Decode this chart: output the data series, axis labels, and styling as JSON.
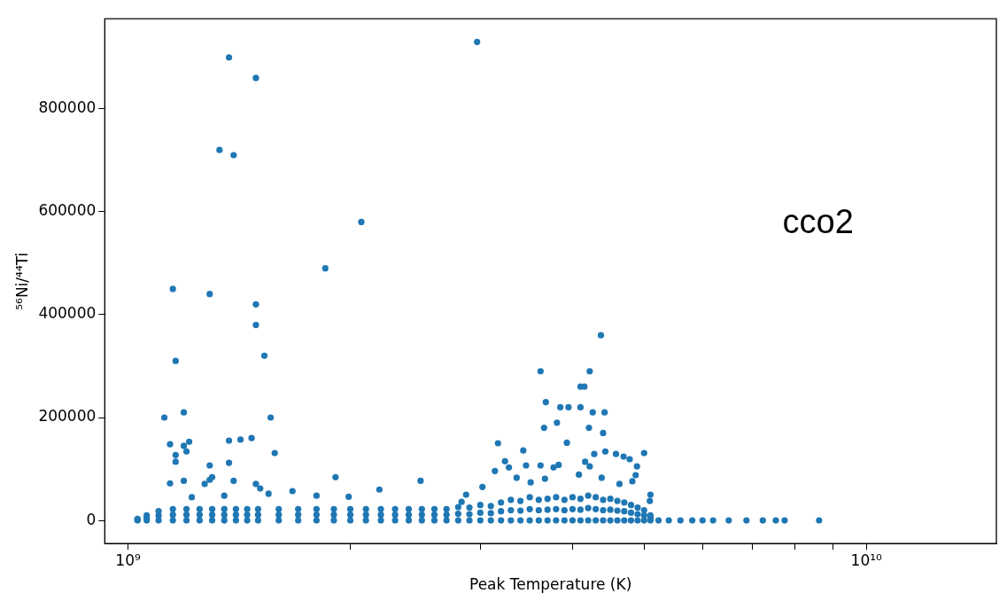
{
  "chart_data": {
    "type": "scatter",
    "xlabel": "Peak Temperature (K)",
    "ylabel": "⁵⁶Ni/⁴⁴Ti",
    "annotations": [
      "cco2"
    ],
    "log": "x",
    "grid": false,
    "marker": "circle",
    "xlim": [
      930000000.0,
      15000000000.0
    ],
    "ylim": [
      -45000,
      975000
    ],
    "xticks": [
      {
        "value": 1000000000.0,
        "label": "10⁹"
      },
      {
        "value": 2000000000.0,
        "label": null
      },
      {
        "value": 3000000000.0,
        "label": null
      },
      {
        "value": 4000000000.0,
        "label": null
      },
      {
        "value": 5000000000.0,
        "label": null
      },
      {
        "value": 6000000000.0,
        "label": null
      },
      {
        "value": 7000000000.0,
        "label": null
      },
      {
        "value": 8000000000.0,
        "label": null
      },
      {
        "value": 9000000000.0,
        "label": null
      },
      {
        "value": 10000000000.0,
        "label": "10¹⁰"
      }
    ],
    "yticks": [
      0,
      200000,
      400000,
      600000,
      800000
    ],
    "series": [
      {
        "color": "#1f77b4",
        "x": [
          1370000000.0,
          1490000000.0,
          1330000000.0,
          1390000000.0,
          2970000000.0,
          2070000000.0,
          1850000000.0,
          1150000000.0,
          1290000000.0,
          1490000000.0,
          1490000000.0,
          1530000000.0,
          1160000000.0,
          4370000000.0,
          4220000000.0,
          3620000000.0,
          4100000000.0,
          4150000000.0,
          3680000000.0,
          3850000000.0,
          3950000000.0,
          4100000000.0,
          4260000000.0,
          4420000000.0,
          3810000000.0,
          3660000000.0,
          4210000000.0,
          4400000000.0,
          1120000000.0,
          1190000000.0,
          1560000000.0,
          1370000000.0,
          1420000000.0,
          1470000000.0,
          1580000000.0,
          1910000000.0,
          2490000000.0,
          3170000000.0,
          3930000000.0,
          5000000000.0,
          1140000000.0,
          1190000000.0,
          1160000000.0,
          1160000000.0,
          1200000000.0,
          1210000000.0,
          1140000000.0,
          1190000000.0,
          1290000000.0,
          1270000000.0,
          1300000000.0,
          1370000000.0,
          1290000000.0,
          1390000000.0,
          1350000000.0,
          1490000000.0,
          1510000000.0,
          1550000000.0,
          1220000000.0,
          1800000000.0,
          1670000000.0,
          1990000000.0,
          2190000000.0,
          3430000000.0,
          3240000000.0,
          3460000000.0,
          3620000000.0,
          3830000000.0,
          4160000000.0,
          4280000000.0,
          4430000000.0,
          4580000000.0,
          4690000000.0,
          4780000000.0,
          4890000000.0,
          3140000000.0,
          2830000000.0,
          2870000000.0,
          3020000000.0,
          3280000000.0,
          3360000000.0,
          3510000000.0,
          3670000000.0,
          3770000000.0,
          4080000000.0,
          4220000000.0,
          4380000000.0,
          4630000000.0,
          4870000000.0,
          4820000000.0,
          5100000000.0,
          5090000000.0,
          5230000000.0,
          5400000000.0,
          5600000000.0,
          5810000000.0,
          6000000000.0,
          6200000000.0,
          6510000000.0,
          6880000000.0,
          7240000000.0,
          7540000000.0,
          7750000000.0,
          8630000000.0,
          1030000000.0,
          1060000000.0,
          1100000000.0,
          1150000000.0,
          1200000000.0,
          1250000000.0,
          1300000000.0,
          1350000000.0,
          1400000000.0,
          1450000000.0,
          1500000000.0,
          1600000000.0,
          1700000000.0,
          1800000000.0,
          1900000000.0,
          2000000000.0,
          2100000000.0,
          2200000000.0,
          2300000000.0,
          2400000000.0,
          2500000000.0,
          2600000000.0,
          2700000000.0,
          2800000000.0,
          2900000000.0,
          3000000000.0,
          3100000000.0,
          3200000000.0,
          3300000000.0,
          3400000000.0,
          3500000000.0,
          3600000000.0,
          3700000000.0,
          3800000000.0,
          3900000000.0,
          4000000000.0,
          4100000000.0,
          4200000000.0,
          4300000000.0,
          4400000000.0,
          4500000000.0,
          4600000000.0,
          4700000000.0,
          4800000000.0,
          4900000000.0,
          5000000000.0,
          5100000000.0,
          1030000000.0,
          1060000000.0,
          1100000000.0,
          1150000000.0,
          1200000000.0,
          1250000000.0,
          1300000000.0,
          1350000000.0,
          1400000000.0,
          1450000000.0,
          1500000000.0,
          1600000000.0,
          1700000000.0,
          1800000000.0,
          1900000000.0,
          2000000000.0,
          2100000000.0,
          2200000000.0,
          2300000000.0,
          2400000000.0,
          2500000000.0,
          2600000000.0,
          2700000000.0,
          2800000000.0,
          2900000000.0,
          3000000000.0,
          3100000000.0,
          3200000000.0,
          3300000000.0,
          3400000000.0,
          3500000000.0,
          3600000000.0,
          3700000000.0,
          3800000000.0,
          3900000000.0,
          4000000000.0,
          4100000000.0,
          4200000000.0,
          4300000000.0,
          4400000000.0,
          4500000000.0,
          4600000000.0,
          4700000000.0,
          4800000000.0,
          4900000000.0,
          5000000000.0,
          5100000000.0,
          1030000000.0,
          1060000000.0,
          1100000000.0,
          1150000000.0,
          1200000000.0,
          1250000000.0,
          1300000000.0,
          1350000000.0,
          1400000000.0,
          1450000000.0,
          1500000000.0,
          1600000000.0,
          1700000000.0,
          1800000000.0,
          1900000000.0,
          2000000000.0,
          2100000000.0,
          2200000000.0,
          2300000000.0,
          2400000000.0,
          2500000000.0,
          2600000000.0,
          2700000000.0,
          2800000000.0,
          2900000000.0,
          3000000000.0,
          3100000000.0,
          3200000000.0,
          3300000000.0,
          3400000000.0,
          3500000000.0,
          3600000000.0,
          3700000000.0,
          3800000000.0,
          3900000000.0,
          4000000000.0,
          4100000000.0,
          4200000000.0,
          4300000000.0,
          4400000000.0,
          4500000000.0,
          4600000000.0,
          4700000000.0,
          4800000000.0,
          4900000000.0,
          5000000000.0,
          5100000000.0
        ],
        "values": [
          900000,
          860000,
          720000,
          710000,
          930000,
          580000,
          490000,
          450000,
          440000,
          420000,
          380000,
          320000,
          310000,
          360000,
          290000,
          290000,
          260000,
          260000,
          230000,
          220000,
          220000,
          220000,
          210000,
          210000,
          190000,
          180000,
          180000,
          170000,
          200000,
          210000,
          200000,
          155000,
          157000,
          160000,
          131000,
          84000,
          77000,
          150000,
          151000,
          131000,
          148000,
          145000,
          127000,
          114000,
          134000,
          153000,
          72000,
          77000,
          107000,
          71000,
          84000,
          112000,
          79000,
          77000,
          48000,
          71000,
          62000,
          52000,
          45000,
          48000,
          57000,
          46000,
          60000,
          136000,
          115000,
          107000,
          107000,
          108000,
          114000,
          129000,
          134000,
          129000,
          124000,
          119000,
          105000,
          96000,
          36000,
          50000,
          65000,
          103000,
          83000,
          74000,
          81000,
          103000,
          89000,
          105000,
          83000,
          71000,
          88000,
          76000,
          50000,
          38000,
          0,
          0,
          0,
          0,
          0,
          0,
          0,
          0,
          0,
          0,
          0,
          0,
          0,
          0,
          0,
          0,
          0,
          0,
          0,
          0,
          0,
          0,
          0,
          0,
          0,
          0,
          0,
          0,
          0,
          0,
          0,
          0,
          0,
          0,
          0,
          0,
          0,
          0,
          0,
          0,
          0,
          0,
          0,
          0,
          0,
          0,
          0,
          0,
          0,
          0,
          0,
          0,
          0,
          0,
          0,
          0,
          0,
          0,
          0,
          1000,
          5000,
          9000,
          11000,
          11000,
          11000,
          11000,
          11000,
          11000,
          11000,
          11000,
          11000,
          11000,
          11000,
          11000,
          11000,
          11000,
          11000,
          11000,
          11000,
          11000,
          11000,
          11000,
          13000,
          12000,
          15000,
          14000,
          18000,
          20000,
          19000,
          22000,
          20000,
          21000,
          22000,
          20000,
          22000,
          21000,
          24000,
          22000,
          20000,
          21000,
          19000,
          18000,
          15000,
          12000,
          10000,
          5000,
          3000,
          10000,
          18000,
          22000,
          22000,
          22000,
          22000,
          22000,
          22000,
          22000,
          22000,
          22000,
          22000,
          22000,
          22000,
          22000,
          22000,
          22000,
          22000,
          22000,
          22000,
          22000,
          22000,
          26000,
          25000,
          30000,
          28000,
          35000,
          40000,
          38000,
          45000,
          40000,
          42000,
          45000,
          40000,
          45000,
          42000,
          48000,
          45000,
          40000,
          42000,
          38000,
          35000,
          30000,
          25000,
          20000,
          10000
        ]
      }
    ]
  }
}
